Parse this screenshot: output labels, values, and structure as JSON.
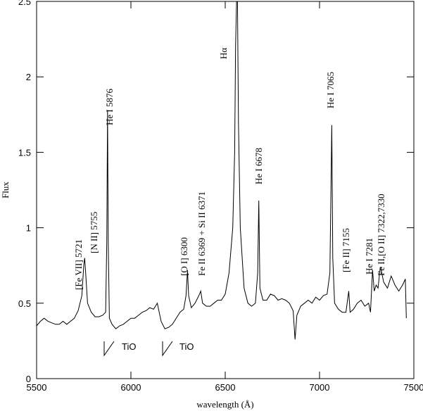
{
  "chart_data": {
    "type": "line",
    "x_label": "wavelength (Å)",
    "y_label": "Flux",
    "xlim": [
      5500,
      7500
    ],
    "ylim": [
      0,
      2.5
    ],
    "xticks": [
      5500,
      6000,
      6500,
      7000,
      7500
    ],
    "yticks": [
      0,
      0.5,
      1,
      1.5,
      2,
      2.5
    ],
    "series": [
      {
        "color": "#000000",
        "x": [
          5500,
          5520,
          5540,
          5560,
          5580,
          5600,
          5620,
          5640,
          5660,
          5680,
          5700,
          5720,
          5740,
          5750,
          5755,
          5760,
          5770,
          5790,
          5810,
          5830,
          5850,
          5866,
          5872,
          5876,
          5880,
          5886,
          5900,
          5920,
          5940,
          5960,
          5980,
          6000,
          6020,
          6040,
          6060,
          6080,
          6100,
          6120,
          6140,
          6150,
          6160,
          6180,
          6200,
          6220,
          6240,
          6260,
          6280,
          6292,
          6300,
          6306,
          6320,
          6340,
          6360,
          6370,
          6380,
          6400,
          6420,
          6440,
          6460,
          6480,
          6500,
          6520,
          6540,
          6550,
          6555,
          6560,
          6565,
          6570,
          6580,
          6600,
          6620,
          6640,
          6660,
          6672,
          6678,
          6684,
          6700,
          6720,
          6740,
          6760,
          6780,
          6800,
          6820,
          6840,
          6860,
          6870,
          6880,
          6900,
          6920,
          6940,
          6960,
          6980,
          7000,
          7020,
          7040,
          7055,
          7065,
          7070,
          7080,
          7100,
          7120,
          7140,
          7155,
          7162,
          7180,
          7200,
          7220,
          7240,
          7260,
          7270,
          7281,
          7290,
          7300,
          7310,
          7322,
          7330,
          7340,
          7360,
          7380,
          7400,
          7420,
          7440,
          7455,
          7460
        ],
        "values": [
          0.35,
          0.38,
          0.4,
          0.38,
          0.37,
          0.36,
          0.36,
          0.38,
          0.36,
          0.38,
          0.4,
          0.45,
          0.55,
          0.75,
          0.8,
          0.7,
          0.5,
          0.44,
          0.41,
          0.41,
          0.42,
          0.44,
          0.9,
          1.78,
          0.9,
          0.4,
          0.36,
          0.33,
          0.35,
          0.36,
          0.38,
          0.4,
          0.4,
          0.42,
          0.44,
          0.45,
          0.47,
          0.46,
          0.5,
          0.44,
          0.38,
          0.33,
          0.34,
          0.36,
          0.4,
          0.44,
          0.46,
          0.55,
          0.72,
          0.55,
          0.47,
          0.5,
          0.55,
          0.58,
          0.5,
          0.48,
          0.48,
          0.5,
          0.52,
          0.52,
          0.56,
          0.7,
          1.0,
          1.5,
          2.2,
          2.5,
          2.5,
          1.7,
          1.0,
          0.6,
          0.5,
          0.48,
          0.5,
          0.7,
          1.18,
          0.6,
          0.52,
          0.52,
          0.56,
          0.55,
          0.52,
          0.53,
          0.52,
          0.5,
          0.45,
          0.26,
          0.42,
          0.48,
          0.5,
          0.52,
          0.5,
          0.54,
          0.52,
          0.55,
          0.56,
          0.7,
          1.68,
          0.8,
          0.5,
          0.46,
          0.44,
          0.44,
          0.58,
          0.44,
          0.46,
          0.5,
          0.52,
          0.48,
          0.5,
          0.44,
          0.72,
          0.58,
          0.62,
          0.6,
          0.74,
          0.7,
          0.64,
          0.6,
          0.68,
          0.62,
          0.58,
          0.62,
          0.66,
          0.4
        ]
      }
    ],
    "annotations": [
      "[Fe VII] 5721",
      "[N II] 5755",
      "He I 5876",
      "[O I] 6300",
      "Fe II 6369 + Si II 6371",
      "Hα",
      "He I 6678",
      "He I 7065",
      "[Fe II] 7155",
      "He I 7281",
      "Fe II,[O II] 7322,7330",
      "TiO",
      "TiO"
    ]
  }
}
